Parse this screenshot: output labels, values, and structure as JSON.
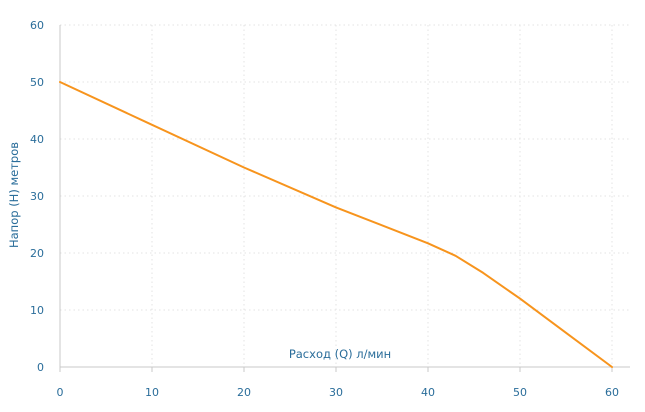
{
  "chart_data": {
    "type": "line",
    "title": "",
    "xlabel": "Расход (Q) л/мин",
    "ylabel": "Напор (Н) метров",
    "xlim": [
      0,
      60
    ],
    "ylim": [
      0,
      60
    ],
    "x_ticks": [
      0,
      10,
      20,
      30,
      40,
      50,
      60
    ],
    "y_ticks": [
      0,
      10,
      20,
      30,
      40,
      50,
      60
    ],
    "grid": true,
    "grid_style": "dotted",
    "colors": {
      "line": "#f7941d",
      "axis": "#c8c8c8",
      "grid": "#e3e3e3",
      "text": "#2a6d9a"
    },
    "series": [
      {
        "x": [
          0,
          10,
          20,
          30,
          40,
          43,
          46,
          50,
          55,
          60
        ],
        "y": [
          50,
          42.5,
          35,
          28,
          21.7,
          19.5,
          16.5,
          12,
          6,
          0
        ]
      }
    ]
  }
}
